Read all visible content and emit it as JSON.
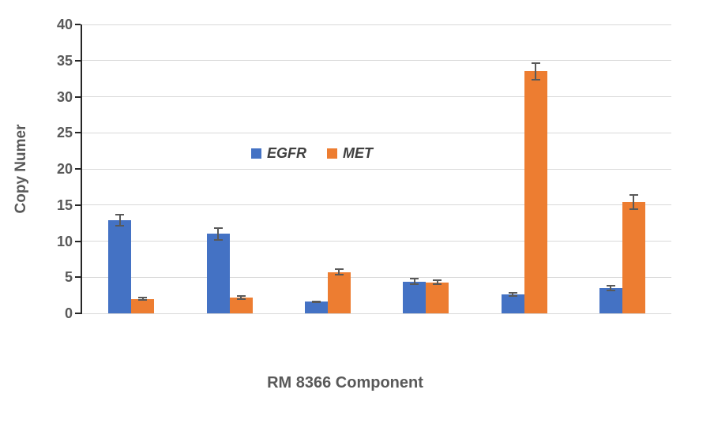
{
  "chart_data": {
    "type": "bar",
    "xlabel": "RM 8366 Component",
    "ylabel": "Copy Numer",
    "ylim": [
      0,
      40
    ],
    "yticks": [
      0,
      5,
      10,
      15,
      20,
      25,
      30,
      35,
      40
    ],
    "grid": true,
    "legend_position": "inside-plot, left-of-center, upper-middle",
    "x_tick_labels": [],
    "series": [
      {
        "name": "EGFR",
        "color": "#4472C4",
        "values": [
          12.9,
          11.0,
          1.6,
          4.4,
          2.6,
          3.5
        ],
        "errors": [
          0.9,
          0.9,
          0.2,
          0.5,
          0.3,
          0.4
        ]
      },
      {
        "name": "MET",
        "color": "#ED7D31",
        "values": [
          2.0,
          2.2,
          5.7,
          4.3,
          33.5,
          15.4
        ],
        "errors": [
          0.3,
          0.3,
          0.5,
          0.4,
          1.3,
          1.1
        ]
      }
    ],
    "colors": {
      "background": "#FFFFFF",
      "gridline": "#D9D9D9",
      "axis_line": "#262626",
      "tick_label": "#595959",
      "axis_title": "#595959",
      "legend_text": "#404040",
      "error_bar": "#595959"
    }
  }
}
